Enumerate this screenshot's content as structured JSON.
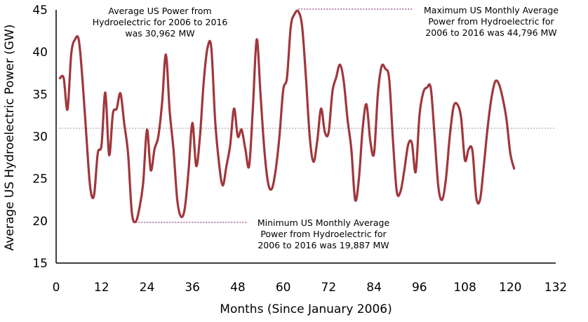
{
  "chart_data": {
    "type": "line",
    "xlabel": "Months (Since January 2006)",
    "ylabel": "Average US Hydroelectric Power (GW)",
    "xlim": [
      0,
      132
    ],
    "ylim": [
      15,
      45
    ],
    "xticks": [
      0,
      12,
      24,
      36,
      48,
      60,
      72,
      84,
      96,
      108,
      120,
      132
    ],
    "yticks": [
      15,
      20,
      25,
      30,
      35,
      40,
      45
    ],
    "grid": false,
    "colors": {
      "line": "#a0373c",
      "mean_line": "#999999",
      "annotation_line": "#8a3a7a"
    },
    "mean_value": 30.962,
    "series": [
      {
        "values": [
          [
            1,
            36.9
          ],
          [
            2,
            36.9
          ],
          [
            3,
            33.2
          ],
          [
            4,
            39.8
          ],
          [
            5,
            41.5
          ],
          [
            6,
            41.4
          ],
          [
            7,
            36.5
          ],
          [
            8,
            30.0
          ],
          [
            9,
            24.0
          ],
          [
            10,
            23.0
          ],
          [
            11,
            28.0
          ],
          [
            12,
            29.0
          ],
          [
            13,
            35.2
          ],
          [
            14,
            27.8
          ],
          [
            15,
            32.7
          ],
          [
            16,
            33.3
          ],
          [
            17,
            35.1
          ],
          [
            18,
            31.5
          ],
          [
            19,
            28.0
          ],
          [
            20,
            21.0
          ],
          [
            21,
            19.9
          ],
          [
            22,
            21.5
          ],
          [
            23,
            24.5
          ],
          [
            24,
            30.8
          ],
          [
            25,
            26.0
          ],
          [
            26,
            28.5
          ],
          [
            27,
            30.0
          ],
          [
            28,
            34.0
          ],
          [
            29,
            39.7
          ],
          [
            30,
            33.0
          ],
          [
            31,
            28.5
          ],
          [
            32,
            22.5
          ],
          [
            33,
            20.5
          ],
          [
            34,
            21.5
          ],
          [
            35,
            26.0
          ],
          [
            36,
            31.6
          ],
          [
            37,
            26.5
          ],
          [
            38,
            30.0
          ],
          [
            39,
            36.5
          ],
          [
            40,
            40.5
          ],
          [
            41,
            40.5
          ],
          [
            42,
            32.0
          ],
          [
            43,
            27.0
          ],
          [
            44,
            24.2
          ],
          [
            45,
            26.5
          ],
          [
            46,
            29.0
          ],
          [
            47,
            33.3
          ],
          [
            48,
            30.0
          ],
          [
            49,
            30.8
          ],
          [
            50,
            28.5
          ],
          [
            51,
            26.5
          ],
          [
            52,
            33.5
          ],
          [
            53,
            41.5
          ],
          [
            54,
            35.0
          ],
          [
            55,
            28.5
          ],
          [
            56,
            24.5
          ],
          [
            57,
            23.8
          ],
          [
            58,
            26.0
          ],
          [
            59,
            30.0
          ],
          [
            60,
            35.5
          ],
          [
            61,
            37.0
          ],
          [
            62,
            43.0
          ],
          [
            63,
            44.5
          ],
          [
            64,
            44.8
          ],
          [
            65,
            43.0
          ],
          [
            66,
            37.0
          ],
          [
            67,
            30.0
          ],
          [
            68,
            27.0
          ],
          [
            69,
            29.5
          ],
          [
            70,
            33.3
          ],
          [
            71,
            30.5
          ],
          [
            72,
            30.5
          ],
          [
            73,
            35.3
          ],
          [
            74,
            37.0
          ],
          [
            75,
            38.5
          ],
          [
            76,
            36.5
          ],
          [
            77,
            32.0
          ],
          [
            78,
            28.5
          ],
          [
            79,
            22.5
          ],
          [
            80,
            25.0
          ],
          [
            81,
            31.0
          ],
          [
            82,
            33.8
          ],
          [
            83,
            29.5
          ],
          [
            84,
            28.0
          ],
          [
            85,
            35.0
          ],
          [
            86,
            38.3
          ],
          [
            87,
            38.0
          ],
          [
            88,
            36.8
          ],
          [
            89,
            29.5
          ],
          [
            90,
            23.5
          ],
          [
            91,
            23.5
          ],
          [
            92,
            26.0
          ],
          [
            93,
            29.0
          ],
          [
            94,
            29.2
          ],
          [
            95,
            25.8
          ],
          [
            96,
            32.5
          ],
          [
            97,
            35.2
          ],
          [
            98,
            35.8
          ],
          [
            99,
            35.7
          ],
          [
            100,
            30.0
          ],
          [
            101,
            24.0
          ],
          [
            102,
            22.5
          ],
          [
            103,
            25.0
          ],
          [
            104,
            30.0
          ],
          [
            105,
            33.5
          ],
          [
            106,
            33.8
          ],
          [
            107,
            32.2
          ],
          [
            108,
            27.2
          ],
          [
            109,
            28.5
          ],
          [
            110,
            28.3
          ],
          [
            111,
            22.8
          ],
          [
            112,
            22.5
          ],
          [
            113,
            26.5
          ],
          [
            114,
            31.0
          ],
          [
            115,
            34.5
          ],
          [
            116,
            36.5
          ],
          [
            117,
            36.2
          ],
          [
            118,
            34.5
          ],
          [
            119,
            32.0
          ],
          [
            120,
            28.0
          ],
          [
            121,
            26.2
          ]
        ]
      }
    ],
    "annotations": [
      {
        "lines": [
          "Average US Power from",
          "Hydroelectric for 2006 to 2016",
          "was 30,962 MW"
        ]
      },
      {
        "lines": [
          "Maximum US Monthly Average",
          "Power from Hydroelectric for",
          "2006 to 2016 was 44,796 MW"
        ],
        "point": [
          64,
          44.8
        ]
      },
      {
        "lines": [
          "Minimum US Monthly Average",
          "Power from Hydroelectric for",
          "2006 to 2016 was 19,887 MW"
        ],
        "point": [
          21,
          19.9
        ]
      }
    ]
  }
}
